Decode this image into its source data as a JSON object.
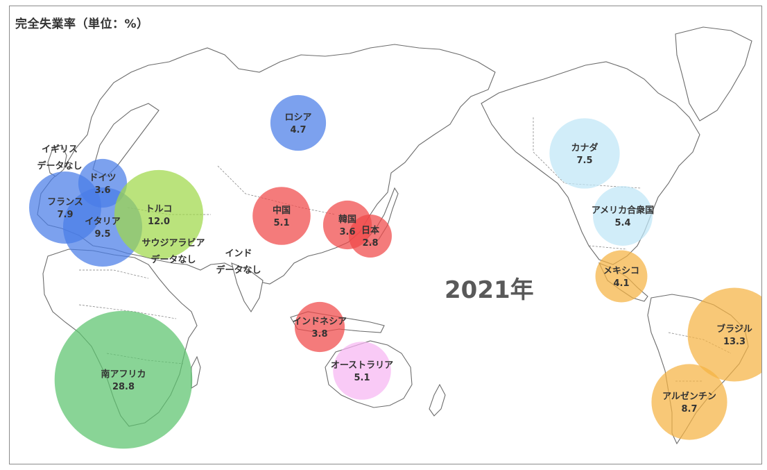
{
  "title": "完全失業率（単位：%）",
  "year": "2021年",
  "bubbles": [
    {
      "name": "ロシア",
      "value": "4.7",
      "color": "#4a7de8"
    },
    {
      "name": "カナダ",
      "value": "7.5",
      "color": "#bfe6f7"
    },
    {
      "name": "アメリカ合衆国",
      "value": "5.4",
      "color": "#bfe6f7"
    },
    {
      "name": "メキシコ",
      "value": "4.1",
      "color": "#f5b342"
    },
    {
      "name": "ブラジル",
      "value": "13.3",
      "color": "#f5b342"
    },
    {
      "name": "アルゼンチン",
      "value": "8.7",
      "color": "#f5b342"
    },
    {
      "name": "中国",
      "value": "5.1",
      "color": "#f04848"
    },
    {
      "name": "韓国",
      "value": "3.6",
      "color": "#f04848"
    },
    {
      "name": "日本",
      "value": "2.8",
      "color": "#f04848"
    },
    {
      "name": "インドネシア",
      "value": "3.8",
      "color": "#f04848"
    },
    {
      "name": "オーストラリア",
      "value": "5.1",
      "color": "#f7b6f2"
    },
    {
      "name": "ドイツ",
      "value": "3.6",
      "color": "#4a7de8"
    },
    {
      "name": "フランス",
      "value": "7.9",
      "color": "#4a7de8"
    },
    {
      "name": "イタリア",
      "value": "9.5",
      "color": "#4a7de8"
    },
    {
      "name": "トルコ",
      "value": "12.0",
      "color": "#9fd84a"
    },
    {
      "name": "南アフリカ",
      "value": "28.8",
      "color": "#5cc46e"
    }
  ],
  "no_data": [
    {
      "line1": "イギリス",
      "line2": "データなし"
    },
    {
      "line1": "サウジアラビア",
      "line2": "データなし"
    },
    {
      "line1": "インド",
      "line2": "データなし"
    }
  ]
}
